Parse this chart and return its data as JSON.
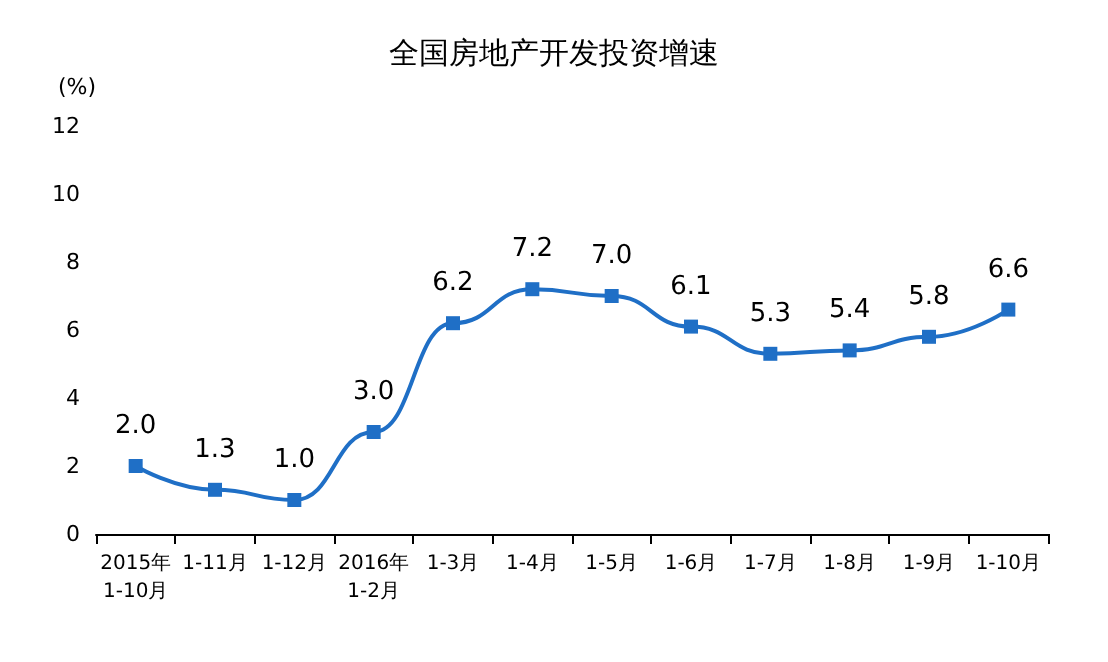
{
  "chart_data": {
    "type": "line",
    "title": "全国房地产开发投资增速",
    "ylabel": "(%)",
    "categories": [
      "2015年\n1-10月",
      "1-11月",
      "1-12月",
      "2016年\n1-2月",
      "1-3月",
      "1-4月",
      "1-5月",
      "1-6月",
      "1-7月",
      "1-8月",
      "1-9月",
      "1-10月"
    ],
    "values": [
      2.0,
      1.3,
      1.0,
      3.0,
      6.2,
      7.2,
      7.0,
      6.1,
      5.3,
      5.4,
      5.8,
      6.6
    ],
    "value_labels": [
      "2.0",
      "1.3",
      "1.0",
      "3.0",
      "6.2",
      "7.2",
      "7.0",
      "6.1",
      "5.3",
      "5.4",
      "5.8",
      "6.6"
    ],
    "color": "#1f6fc6",
    "marker": "square",
    "line_style": "solid",
    "grid": false,
    "ylim": [
      0,
      12
    ],
    "yticks": [
      0,
      2,
      4,
      6,
      8,
      10,
      12
    ]
  }
}
